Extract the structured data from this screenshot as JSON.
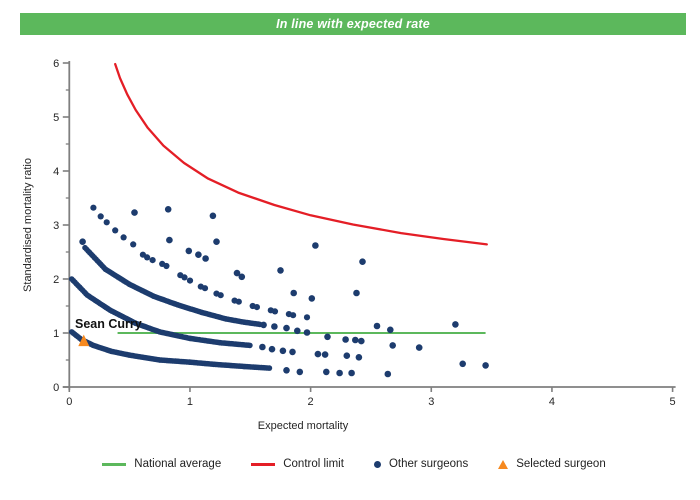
{
  "banner": {
    "text": "In line with expected rate",
    "bg": "#5cb85c",
    "fg": "#ffffff"
  },
  "chart_data": {
    "type": "scatter",
    "xlabel": "Expected mortality",
    "ylabel": "Standardised mortality ratio",
    "xlim": [
      0,
      5
    ],
    "ylim": [
      0,
      6
    ],
    "x_ticks": [
      0,
      1,
      2,
      3,
      4,
      5
    ],
    "y_ticks": [
      0,
      1,
      2,
      3,
      4,
      5,
      6
    ],
    "y_minor_ticks": [
      0.5,
      1.5,
      2.5,
      3.5,
      4.5,
      5.5
    ],
    "axis_color": "#7f7f7f",
    "grid": "off",
    "legend_position": "bottom",
    "national_average": {
      "y": 1.0,
      "x_start": 0.4,
      "x_end": 3.45,
      "color": "#5cb85c"
    },
    "control_limit": {
      "color": "#e41e26",
      "points": [
        [
          0.38,
          5.98
        ],
        [
          0.42,
          5.72
        ],
        [
          0.48,
          5.42
        ],
        [
          0.55,
          5.13
        ],
        [
          0.65,
          4.8
        ],
        [
          0.78,
          4.47
        ],
        [
          0.95,
          4.15
        ],
        [
          1.15,
          3.86
        ],
        [
          1.4,
          3.6
        ],
        [
          1.7,
          3.37
        ],
        [
          2.0,
          3.18
        ],
        [
          2.35,
          3.01
        ],
        [
          2.75,
          2.85
        ],
        [
          3.1,
          2.74
        ],
        [
          3.46,
          2.64
        ]
      ]
    },
    "selected_surgeon": {
      "label": "Sean Curry",
      "x": 0.12,
      "y": 0.84,
      "color": "#f6891f"
    },
    "other_surgeons": {
      "color": "#1d3c6e",
      "dense_bands": [
        {
          "points": [
            [
              0.02,
              1.02
            ],
            [
              0.1,
              0.88
            ],
            [
              0.2,
              0.77
            ],
            [
              0.35,
              0.66
            ],
            [
              0.5,
              0.59
            ],
            [
              0.75,
              0.5
            ],
            [
              1.0,
              0.46
            ],
            [
              1.2,
              0.42
            ],
            [
              1.45,
              0.38
            ],
            [
              1.66,
              0.35
            ]
          ]
        },
        {
          "points": [
            [
              0.02,
              2.0
            ],
            [
              0.15,
              1.7
            ],
            [
              0.34,
              1.42
            ],
            [
              0.55,
              1.18
            ],
            [
              0.75,
              1.02
            ],
            [
              1.0,
              0.9
            ],
            [
              1.25,
              0.82
            ],
            [
              1.5,
              0.77
            ]
          ]
        },
        {
          "points": [
            [
              0.13,
              2.58
            ],
            [
              0.3,
              2.18
            ],
            [
              0.5,
              1.9
            ],
            [
              0.7,
              1.68
            ],
            [
              0.9,
              1.52
            ],
            [
              1.1,
              1.38
            ],
            [
              1.3,
              1.26
            ],
            [
              1.45,
              1.2
            ],
            [
              1.58,
              1.16
            ]
          ]
        }
      ],
      "dashed_arc": [
        [
          0.61,
          2.45
        ],
        [
          0.645,
          2.4
        ],
        [
          0.69,
          2.35
        ],
        [
          0.77,
          2.28
        ],
        [
          0.805,
          2.24
        ],
        [
          0.92,
          2.07
        ],
        [
          0.955,
          2.03
        ],
        [
          1.0,
          1.97
        ],
        [
          1.09,
          1.86
        ],
        [
          1.125,
          1.83
        ],
        [
          1.22,
          1.73
        ],
        [
          1.255,
          1.7
        ],
        [
          1.37,
          1.6
        ],
        [
          1.405,
          1.58
        ],
        [
          1.52,
          1.5
        ],
        [
          1.555,
          1.48
        ],
        [
          1.67,
          1.42
        ],
        [
          1.705,
          1.4
        ],
        [
          1.82,
          1.35
        ],
        [
          1.855,
          1.33
        ],
        [
          1.97,
          1.29
        ]
      ],
      "top_arc": [
        [
          0.2,
          3.32
        ],
        [
          0.26,
          3.16
        ],
        [
          0.31,
          3.05
        ],
        [
          0.38,
          2.9
        ],
        [
          0.45,
          2.77
        ],
        [
          0.53,
          2.64
        ]
      ],
      "scatter": [
        [
          0.54,
          3.23
        ],
        [
          0.82,
          3.29
        ],
        [
          1.19,
          3.17
        ],
        [
          0.11,
          2.69
        ],
        [
          0.83,
          2.72
        ],
        [
          1.22,
          2.69
        ],
        [
          0.99,
          2.52
        ],
        [
          1.07,
          2.45
        ],
        [
          1.13,
          2.38
        ],
        [
          1.39,
          2.11
        ],
        [
          1.43,
          2.04
        ],
        [
          1.75,
          2.16
        ],
        [
          2.04,
          2.62
        ],
        [
          2.43,
          2.32
        ],
        [
          1.86,
          1.74
        ],
        [
          2.38,
          1.74
        ],
        [
          2.01,
          1.64
        ],
        [
          2.55,
          1.13
        ],
        [
          2.66,
          1.06
        ],
        [
          3.2,
          1.16
        ],
        [
          1.61,
          1.15
        ],
        [
          1.7,
          1.12
        ],
        [
          1.8,
          1.09
        ],
        [
          1.89,
          1.04
        ],
        [
          1.97,
          1.01
        ],
        [
          2.14,
          0.93
        ],
        [
          2.29,
          0.88
        ],
        [
          2.37,
          0.87
        ],
        [
          2.42,
          0.85
        ],
        [
          2.68,
          0.77
        ],
        [
          2.9,
          0.73
        ],
        [
          1.6,
          0.74
        ],
        [
          1.68,
          0.7
        ],
        [
          1.77,
          0.67
        ],
        [
          1.85,
          0.65
        ],
        [
          2.06,
          0.61
        ],
        [
          2.12,
          0.6
        ],
        [
          2.3,
          0.58
        ],
        [
          2.4,
          0.55
        ],
        [
          3.26,
          0.43
        ],
        [
          3.45,
          0.4
        ],
        [
          1.8,
          0.31
        ],
        [
          1.91,
          0.28
        ],
        [
          2.13,
          0.28
        ],
        [
          2.24,
          0.26
        ],
        [
          2.34,
          0.26
        ],
        [
          2.64,
          0.24
        ]
      ]
    }
  },
  "legend": {
    "items": [
      {
        "label": "National average",
        "swatch": "line",
        "color": "#5cb85c"
      },
      {
        "label": "Control limit",
        "swatch": "line",
        "color": "#e41e26"
      },
      {
        "label": "Other surgeons",
        "swatch": "dot",
        "color": "#1d3c6e"
      },
      {
        "label": "Selected surgeon",
        "swatch": "triangle",
        "color": "#f6891f"
      }
    ]
  }
}
